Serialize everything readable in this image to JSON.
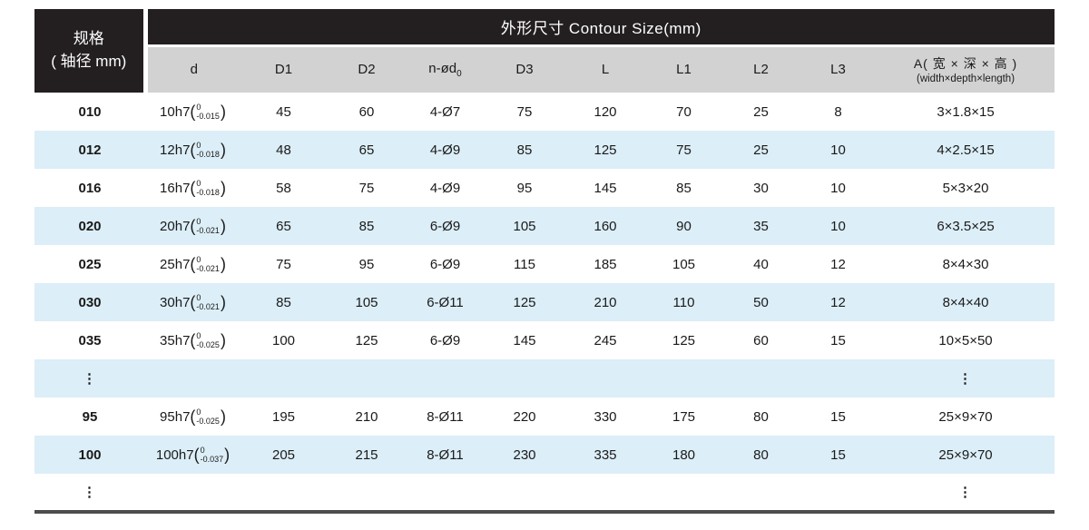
{
  "colors": {
    "header_bg": "#231f20",
    "subheader_bg": "#d2d2d2",
    "row_alt_bg": "#dceef7",
    "bottom_border": "#4d4d4d",
    "text_color": "#1a1a1a"
  },
  "table": {
    "ellipsis_mark": "⋮",
    "header": {
      "spec_line1": "规格",
      "spec_line2": "( 轴径 mm)",
      "contour_title": "外形尺寸 Contour Size(mm)",
      "columns": [
        {
          "id": "d",
          "label": "d"
        },
        {
          "id": "d1",
          "label": "D1"
        },
        {
          "id": "d2",
          "label": "D2"
        },
        {
          "id": "n-od0",
          "label": "n-ød",
          "sub": "0"
        },
        {
          "id": "d3",
          "label": "D3"
        },
        {
          "id": "l",
          "label": "L"
        },
        {
          "id": "l1",
          "label": "L1"
        },
        {
          "id": "l2",
          "label": "L2"
        },
        {
          "id": "l3",
          "label": "L3"
        }
      ],
      "a_column": {
        "line1": "A( 宽 × 深 × 高 )",
        "line2": "(width×depth×length)"
      }
    },
    "rows": [
      {
        "spec": "010",
        "d": {
          "base": "10h7",
          "upper": "0",
          "lower": "-0.015"
        },
        "values": [
          "45",
          "60",
          "4-Ø7",
          "75",
          "120",
          "70",
          "25",
          "8",
          "3×1.8×15"
        ]
      },
      {
        "spec": "012",
        "d": {
          "base": "12h7",
          "upper": "0",
          "lower": "-0.018"
        },
        "values": [
          "48",
          "65",
          "4-Ø9",
          "85",
          "125",
          "75",
          "25",
          "10",
          "4×2.5×15"
        ]
      },
      {
        "spec": "016",
        "d": {
          "base": "16h7",
          "upper": "0",
          "lower": "-0.018"
        },
        "values": [
          "58",
          "75",
          "4-Ø9",
          "95",
          "145",
          "85",
          "30",
          "10",
          "5×3×20"
        ]
      },
      {
        "spec": "020",
        "d": {
          "base": "20h7",
          "upper": "0",
          "lower": "-0.021"
        },
        "values": [
          "65",
          "85",
          "6-Ø9",
          "105",
          "160",
          "90",
          "35",
          "10",
          "6×3.5×25"
        ]
      },
      {
        "spec": "025",
        "d": {
          "base": "25h7",
          "upper": "0",
          "lower": "-0.021"
        },
        "values": [
          "75",
          "95",
          "6-Ø9",
          "115",
          "185",
          "105",
          "40",
          "12",
          "8×4×30"
        ]
      },
      {
        "spec": "030",
        "d": {
          "base": "30h7",
          "upper": "0",
          "lower": "-0.021"
        },
        "values": [
          "85",
          "105",
          "6-Ø11",
          "125",
          "210",
          "110",
          "50",
          "12",
          "8×4×40"
        ]
      },
      {
        "spec": "035",
        "d": {
          "base": "35h7",
          "upper": "0",
          "lower": "-0.025"
        },
        "values": [
          "100",
          "125",
          "6-Ø9",
          "145",
          "245",
          "125",
          "60",
          "15",
          "10×5×50"
        ]
      },
      {
        "type": "ellipsis"
      },
      {
        "spec": "95",
        "d": {
          "base": "95h7",
          "upper": "0",
          "lower": "-0.025"
        },
        "values": [
          "195",
          "210",
          "8-Ø11",
          "220",
          "330",
          "175",
          "80",
          "15",
          "25×9×70"
        ]
      },
      {
        "spec": "100",
        "d": {
          "base": "100h7",
          "upper": "0",
          "lower": "-0.037"
        },
        "values": [
          "205",
          "215",
          "8-Ø11",
          "230",
          "335",
          "180",
          "80",
          "15",
          "25×9×70"
        ]
      },
      {
        "type": "ellipsis"
      }
    ]
  }
}
